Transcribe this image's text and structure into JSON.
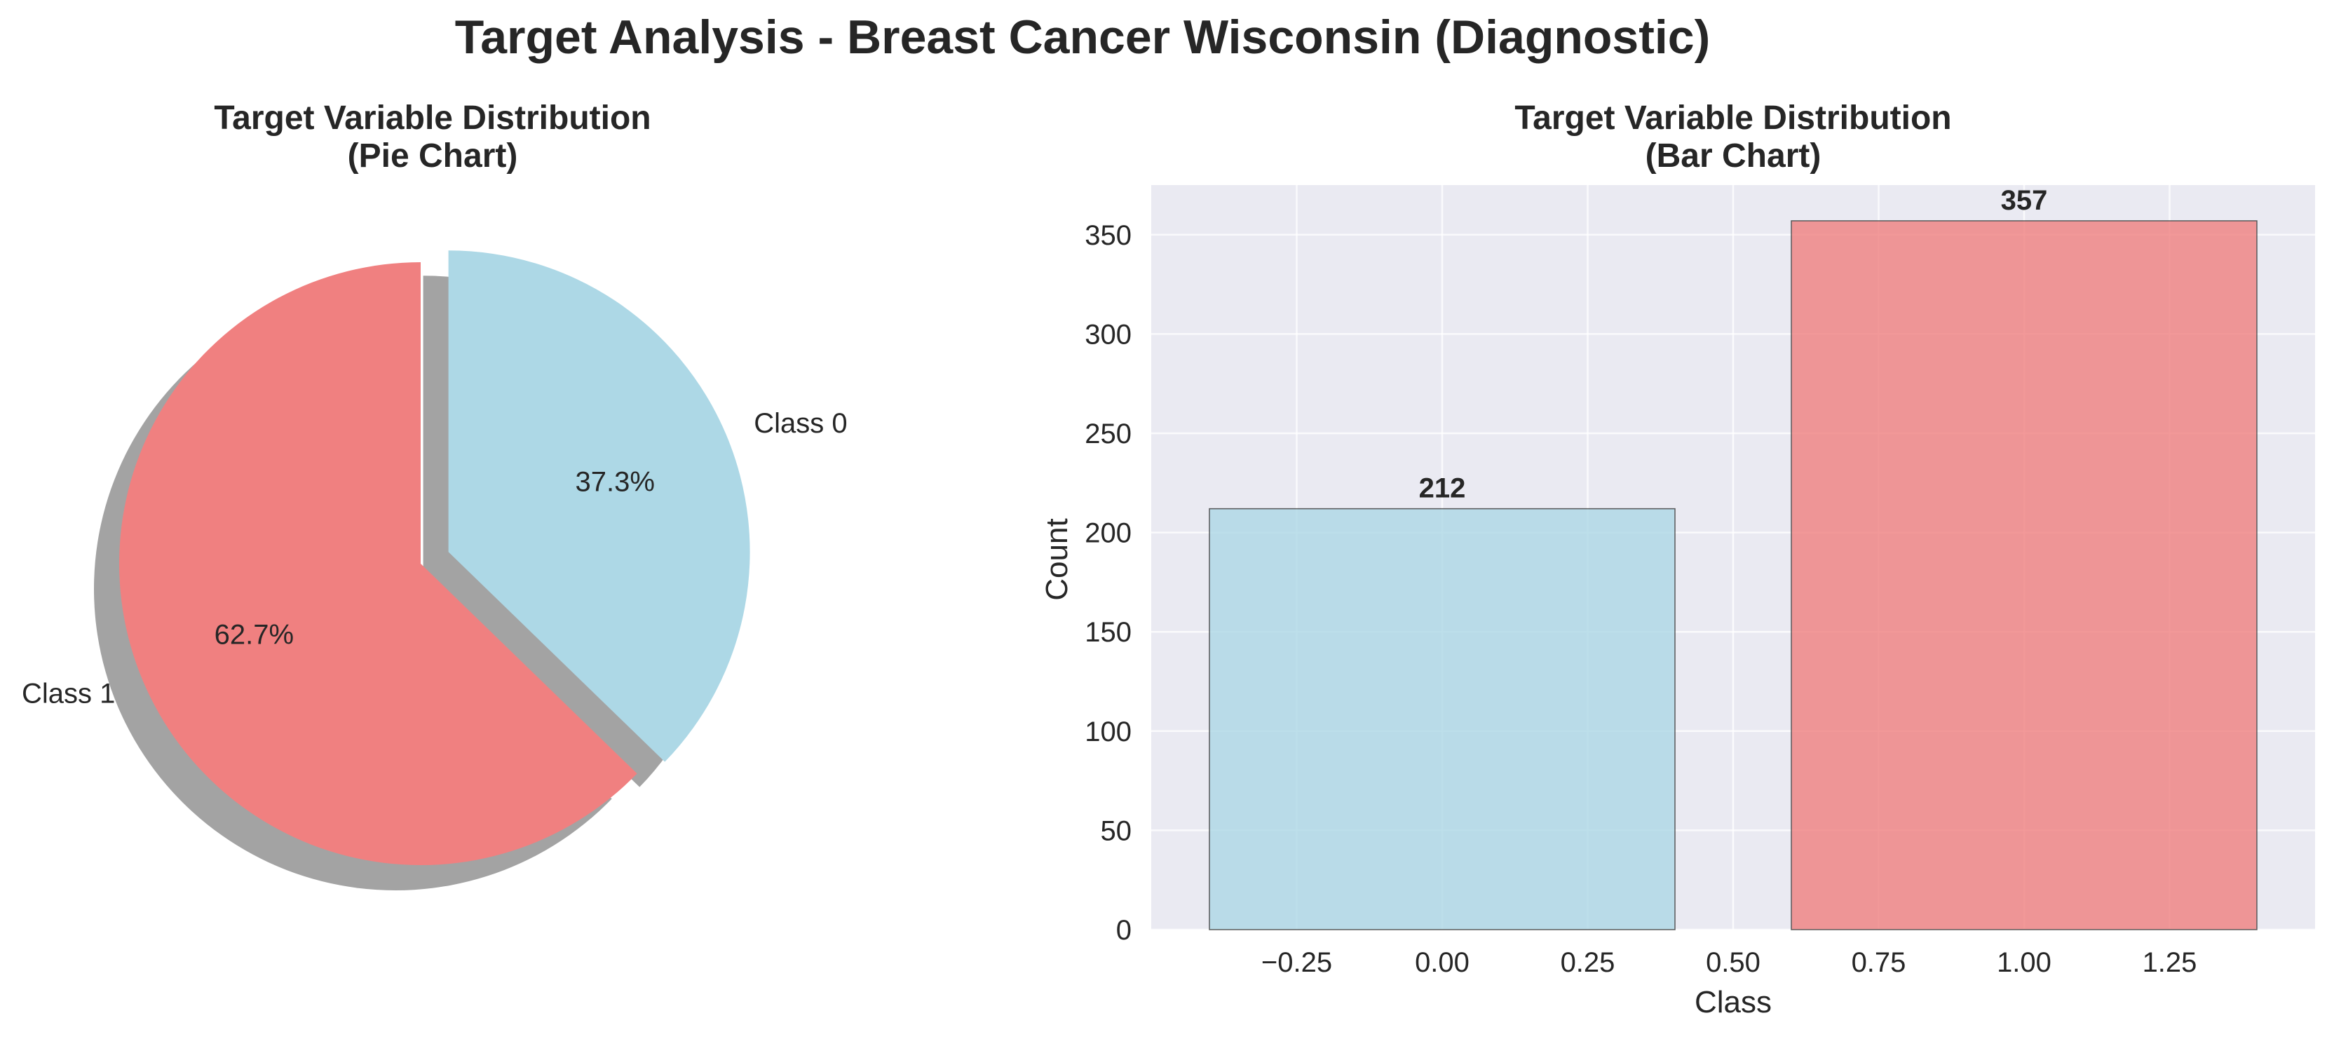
{
  "suptitle": "Target Analysis - Breast Cancer Wisconsin (Diagnostic)",
  "chart_data": [
    {
      "type": "pie",
      "title_line1": "Target Variable Distribution",
      "title_line2": "(Pie Chart)",
      "slices": [
        {
          "label": "Class 1",
          "value": 357,
          "pct_label": "62.7%",
          "color": "#F08080",
          "explode": 0.0
        },
        {
          "label": "Class 0",
          "value": 212,
          "pct_label": "37.3%",
          "color": "#ADD8E6",
          "explode": 0.1
        }
      ],
      "startangle": 90,
      "shadow": true,
      "shadow_color": "#999999"
    },
    {
      "type": "bar",
      "title_line1": "Target Variable Distribution",
      "title_line2": "(Bar Chart)",
      "xlabel": "Class",
      "ylabel": "Count",
      "bars": [
        {
          "x": 0,
          "value": 212,
          "label": "212",
          "color": "#ADD8E6"
        },
        {
          "x": 1,
          "value": 357,
          "label": "357",
          "color": "#F08080"
        }
      ],
      "bar_width": 0.8,
      "xlim": [
        -0.5,
        1.5
      ],
      "ylim": [
        0,
        375
      ],
      "xticks": [
        -0.25,
        0.0,
        0.25,
        0.5,
        0.75,
        1.0,
        1.25
      ],
      "xtick_labels": [
        "−0.25",
        "0.00",
        "0.25",
        "0.50",
        "0.75",
        "1.00",
        "1.25"
      ],
      "yticks": [
        0,
        50,
        100,
        150,
        200,
        250,
        300,
        350
      ],
      "ytick_labels": [
        "0",
        "50",
        "100",
        "150",
        "200",
        "250",
        "300",
        "350"
      ],
      "grid": true,
      "background": "#EAEAF2"
    }
  ]
}
